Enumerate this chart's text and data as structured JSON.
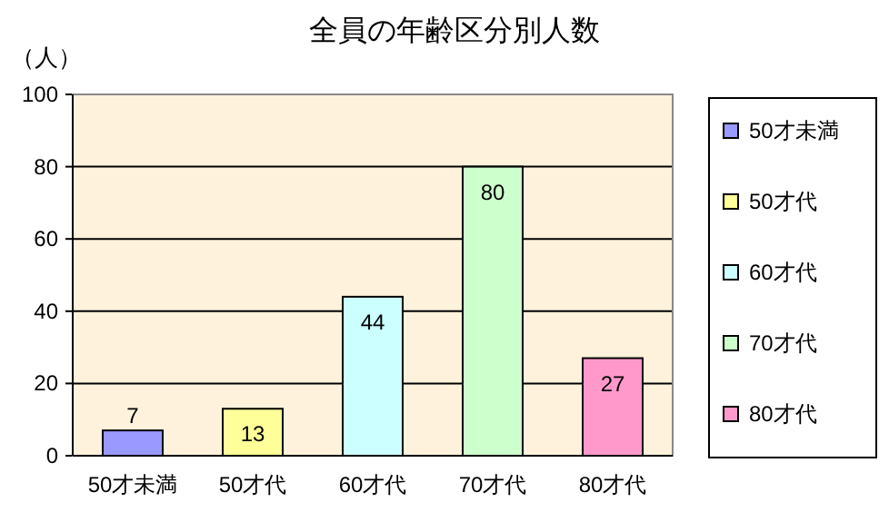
{
  "chart_data": {
    "type": "bar",
    "title": "全員の年齢区分別人数",
    "ylabel": "（人）",
    "categories": [
      "50才未満",
      "50才代",
      "60才代",
      "70才代",
      "80才代"
    ],
    "series": [
      {
        "name": "50才未満",
        "color": "#9999ff",
        "values": [
          7,
          null,
          null,
          null,
          null
        ]
      },
      {
        "name": "50才代",
        "color": "#ffff99",
        "values": [
          null,
          13,
          null,
          null,
          null
        ]
      },
      {
        "name": "60才代",
        "color": "#ccffff",
        "values": [
          null,
          null,
          44,
          null,
          null
        ]
      },
      {
        "name": "70才代",
        "color": "#ccffcc",
        "values": [
          null,
          null,
          null,
          80,
          null
        ]
      },
      {
        "name": "80才代",
        "color": "#ff99cc",
        "values": [
          null,
          null,
          null,
          null,
          27
        ]
      }
    ],
    "ylim": [
      0,
      100
    ],
    "yticks": [
      0,
      20,
      40,
      60,
      80,
      100
    ],
    "grid": "y",
    "legend": "right",
    "data_labels": true
  }
}
